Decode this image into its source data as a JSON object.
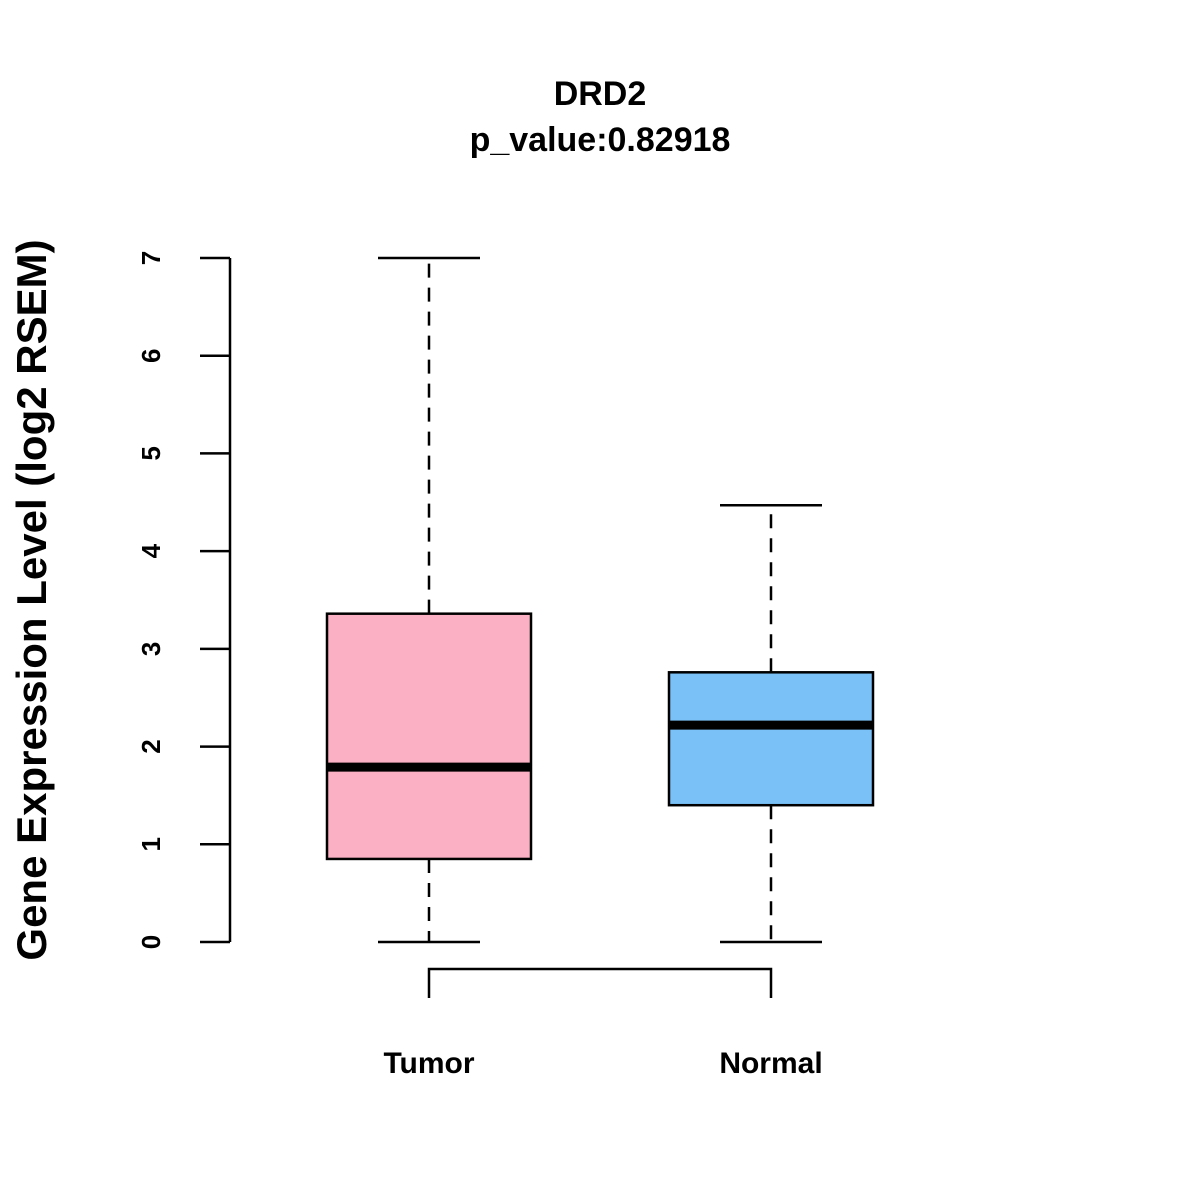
{
  "chart_data": {
    "type": "boxplot",
    "title": "DRD2",
    "subtitle": "p_value:0.82918",
    "xlabel": "",
    "ylabel": "Gene Expression Level (log2 RSEM)",
    "ylim": [
      0,
      7
    ],
    "yticks": [
      0,
      1,
      2,
      3,
      4,
      5,
      6,
      7
    ],
    "grid": false,
    "categories": [
      "Tumor",
      "Normal"
    ],
    "boxes": [
      {
        "name": "Tumor",
        "min": 0,
        "q1": 0.85,
        "median": 1.79,
        "q3": 3.36,
        "max": 7.0,
        "color": "#FBB1C3"
      },
      {
        "name": "Normal",
        "min": 0,
        "q1": 1.4,
        "median": 2.22,
        "q3": 2.76,
        "max": 4.47,
        "color": "#79C1F7"
      }
    ],
    "comparison": {
      "from": "Tumor",
      "to": "Normal",
      "p_value": 0.82918
    }
  }
}
